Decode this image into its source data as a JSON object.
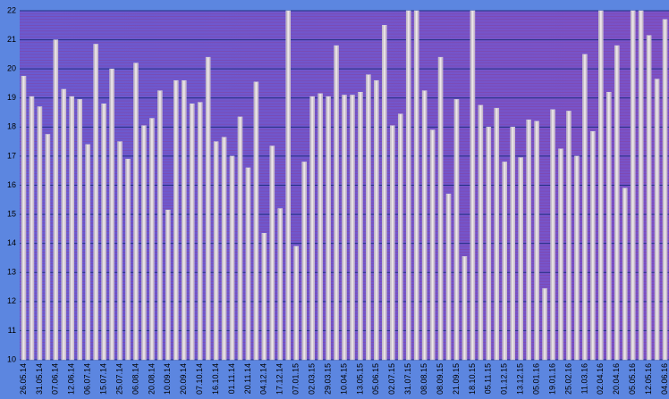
{
  "chart_data": {
    "type": "bar",
    "categories": [
      "26.05.14",
      null,
      "31.05.14",
      null,
      "07.06.14",
      null,
      "12.06.14",
      null,
      "06.07.14",
      null,
      "15.07.14",
      null,
      "25.07.14",
      null,
      "06.08.14",
      null,
      "20.08.14",
      null,
      "10.09.14",
      null,
      "20.09.14",
      null,
      "07.10.14",
      null,
      "16.10.14",
      null,
      "01.11.14",
      null,
      "20.11.14",
      null,
      "04.12.14",
      null,
      "17.12.14",
      null,
      "07.01.15",
      null,
      "02.03.15",
      null,
      "29.03.15",
      null,
      "10.04.15",
      null,
      "13.05.15",
      null,
      "05.06.15",
      null,
      "02.07.15",
      null,
      "31.07.15",
      null,
      "08.08.15",
      null,
      "08.09.15",
      null,
      "21.09.15",
      null,
      "18.10.15",
      null,
      "05.11.15",
      null,
      "01.12.15",
      null,
      "13.12.15",
      null,
      "05.01.16",
      null,
      "19.01.16",
      null,
      "25.02.16",
      null,
      "11.03.16",
      null,
      "02.04.16",
      null,
      "20.04.16",
      null,
      "05.05.16",
      null,
      "12.05.16",
      null,
      "04.06.16"
    ],
    "values": [
      19.75,
      19.05,
      18.7,
      17.75,
      21.0,
      19.3,
      19.05,
      18.95,
      17.4,
      20.85,
      18.8,
      20.0,
      17.5,
      16.9,
      20.2,
      18.05,
      18.3,
      19.25,
      15.15,
      19.6,
      19.6,
      18.8,
      18.85,
      20.4,
      17.5,
      17.65,
      17.0,
      18.35,
      16.6,
      19.55,
      14.35,
      17.35,
      15.2,
      22,
      13.9,
      16.8,
      19.05,
      19.15,
      19.05,
      20.8,
      19.1,
      19.1,
      19.2,
      19.8,
      19.6,
      21.5,
      18.05,
      18.45,
      22,
      22,
      19.25,
      17.9,
      20.4,
      15.7,
      18.95,
      13.55,
      22,
      18.75,
      18.0,
      18.65,
      16.8,
      18.0,
      16.95,
      18.25,
      18.2,
      12.45,
      18.6,
      17.25,
      18.55,
      17.0,
      20.5,
      17.85,
      22,
      19.2,
      20.8,
      15.9,
      22,
      22,
      21.15,
      19.65,
      21.7
    ],
    "color": "#d8d0dc",
    "ylim": [
      10,
      22
    ],
    "yticks": [
      10,
      11,
      12,
      13,
      14,
      15,
      16,
      17,
      18,
      19,
      20,
      21,
      22
    ],
    "grid": true
  }
}
